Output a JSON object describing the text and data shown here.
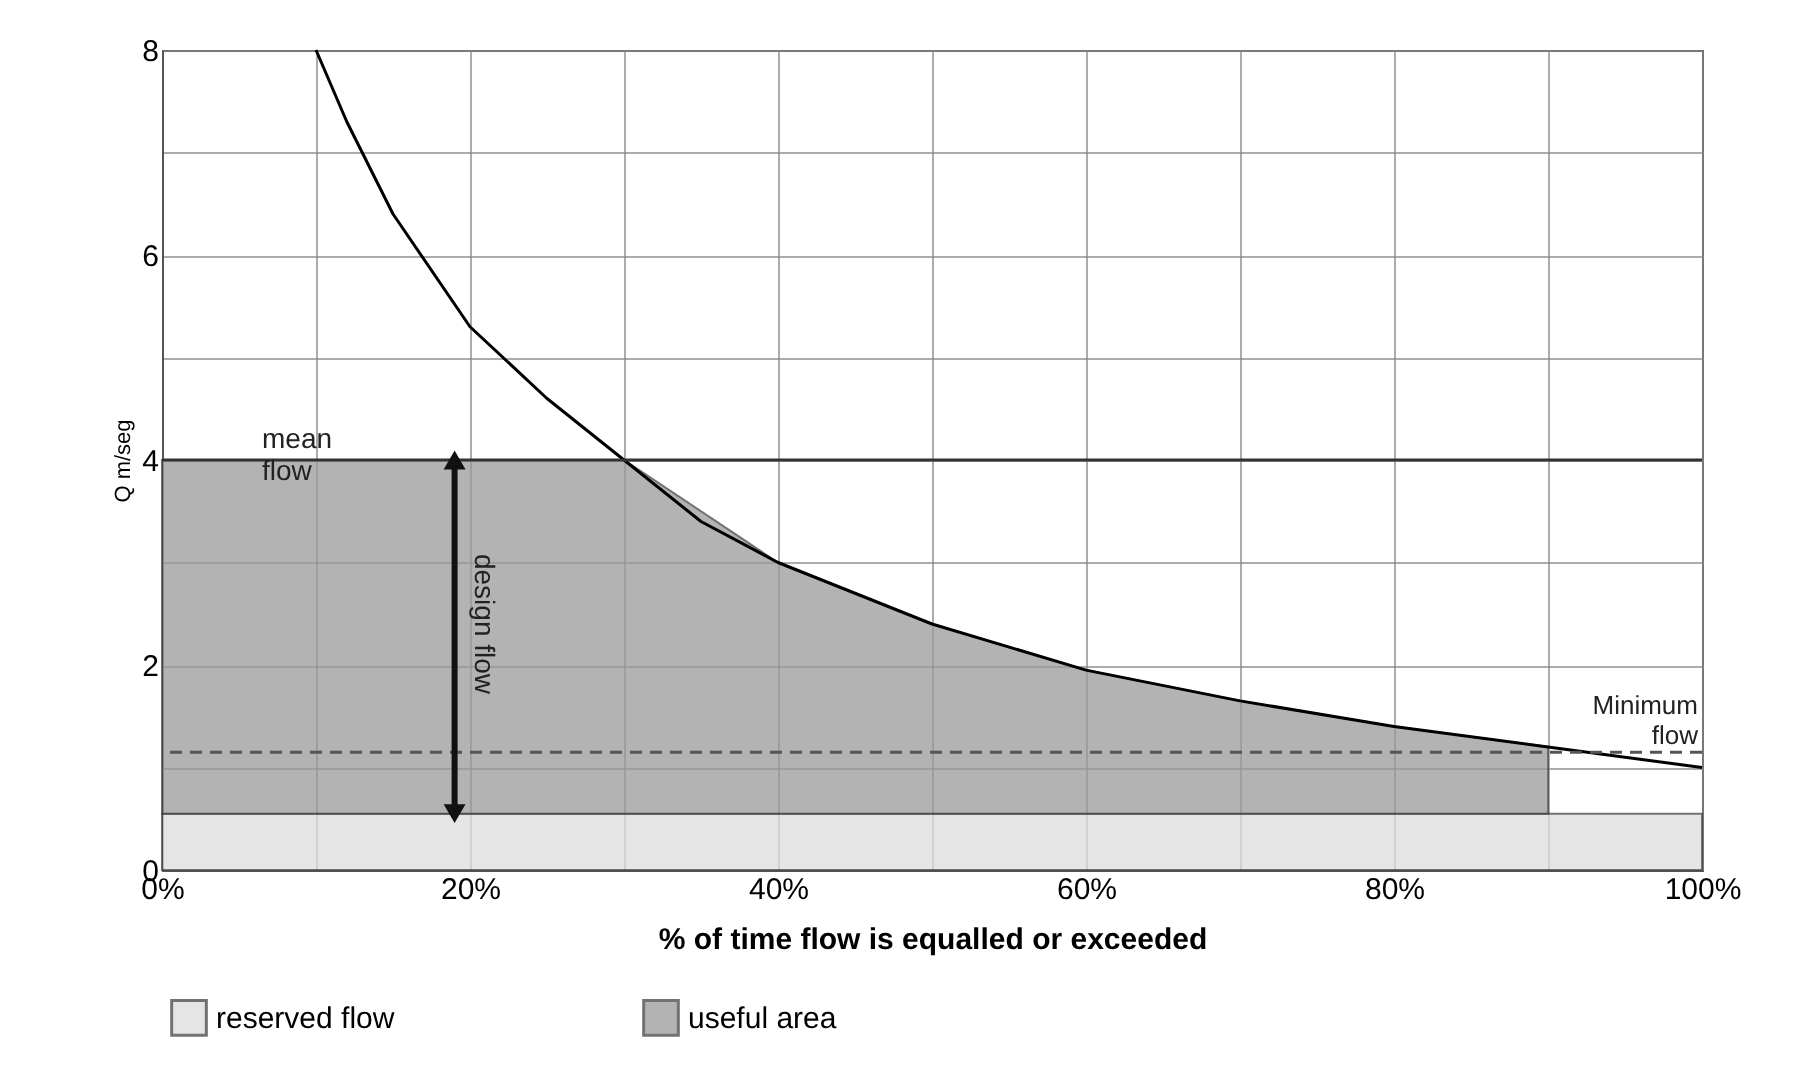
{
  "chart_data": {
    "type": "line",
    "xlabel": "% of time flow is equalled or exceeded",
    "ylabel": "Q m/seg",
    "xlim": [
      0,
      100
    ],
    "ylim": [
      0,
      8
    ],
    "xticks": [
      {
        "value": 0,
        "label": "0%"
      },
      {
        "value": 10,
        "label": null
      },
      {
        "value": 20,
        "label": "20%"
      },
      {
        "value": 30,
        "label": null
      },
      {
        "value": 40,
        "label": "40%"
      },
      {
        "value": 50,
        "label": null
      },
      {
        "value": 60,
        "label": "60%"
      },
      {
        "value": 70,
        "label": null
      },
      {
        "value": 80,
        "label": "80%"
      },
      {
        "value": 90,
        "label": null
      },
      {
        "value": 100,
        "label": "100%"
      }
    ],
    "yticks": [
      0,
      {
        "value": 1,
        "label": null
      },
      2,
      {
        "value": 3,
        "label": null
      },
      4,
      {
        "value": 5,
        "label": null
      },
      6,
      {
        "value": 7,
        "label": null
      },
      8
    ],
    "grid": true,
    "legend": "bottom",
    "series": [
      {
        "name": "useful area",
        "type": "area",
        "color": "#9a9a9a",
        "x": [
          0,
          10,
          20,
          30,
          40,
          50,
          60,
          70,
          80,
          90
        ],
        "values": [
          4,
          4,
          4,
          4.0,
          3.0,
          2.4,
          1.95,
          1.65,
          1.4,
          1.2
        ]
      },
      {
        "color": "#000000",
        "x": [
          10,
          12,
          15,
          20,
          25,
          30,
          35,
          40,
          50,
          60,
          70,
          80,
          90,
          100
        ],
        "values": [
          8,
          7.3,
          6.4,
          5.3,
          4.6,
          4.0,
          3.4,
          3.0,
          2.4,
          1.95,
          1.65,
          1.4,
          1.2,
          1.0
        ]
      }
    ],
    "bands": [
      {
        "axis": "y",
        "from": 0,
        "to": 0.55,
        "label": "reserved flow",
        "color": "#dddddd"
      }
    ],
    "ref_lines": [
      {
        "axis": "y",
        "value": 4,
        "label": "mean flow",
        "color": "#333333",
        "line_style": "solid"
      },
      {
        "axis": "y",
        "value": 1.15,
        "label": "Minimum flow",
        "color": "#555555",
        "line_style": "dashed"
      }
    ],
    "annotations": [
      "design flow"
    ]
  }
}
